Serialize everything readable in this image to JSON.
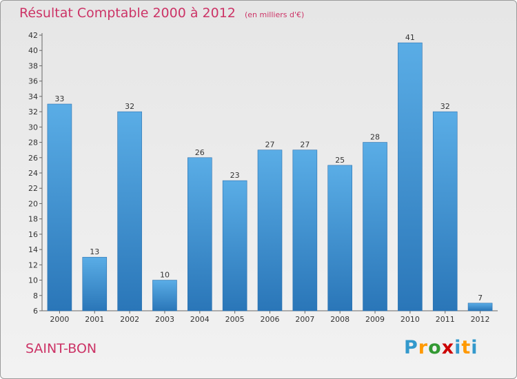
{
  "chart_data": {
    "type": "bar",
    "title": "Résultat Comptable 2000 à 2012",
    "subtitle": "(en milliers d'€)",
    "categories": [
      "2000",
      "2001",
      "2002",
      "2003",
      "2004",
      "2005",
      "2006",
      "2007",
      "2008",
      "2009",
      "2010",
      "2011",
      "2012"
    ],
    "values": [
      33,
      13,
      32,
      10,
      26,
      23,
      27,
      27,
      25,
      28,
      41,
      32,
      7
    ],
    "ylim": [
      6,
      42
    ],
    "yticks": [
      6,
      8,
      10,
      12,
      14,
      16,
      18,
      20,
      22,
      24,
      26,
      28,
      30,
      32,
      34,
      36,
      38,
      40,
      42
    ],
    "xlabel": "",
    "ylabel": "",
    "grid": false,
    "bar_color": "#3d8fd4"
  },
  "footer": {
    "place": "SAINT-BON",
    "brand_letters": [
      "P",
      "r",
      "o",
      "x",
      "i",
      "t",
      "i"
    ]
  }
}
